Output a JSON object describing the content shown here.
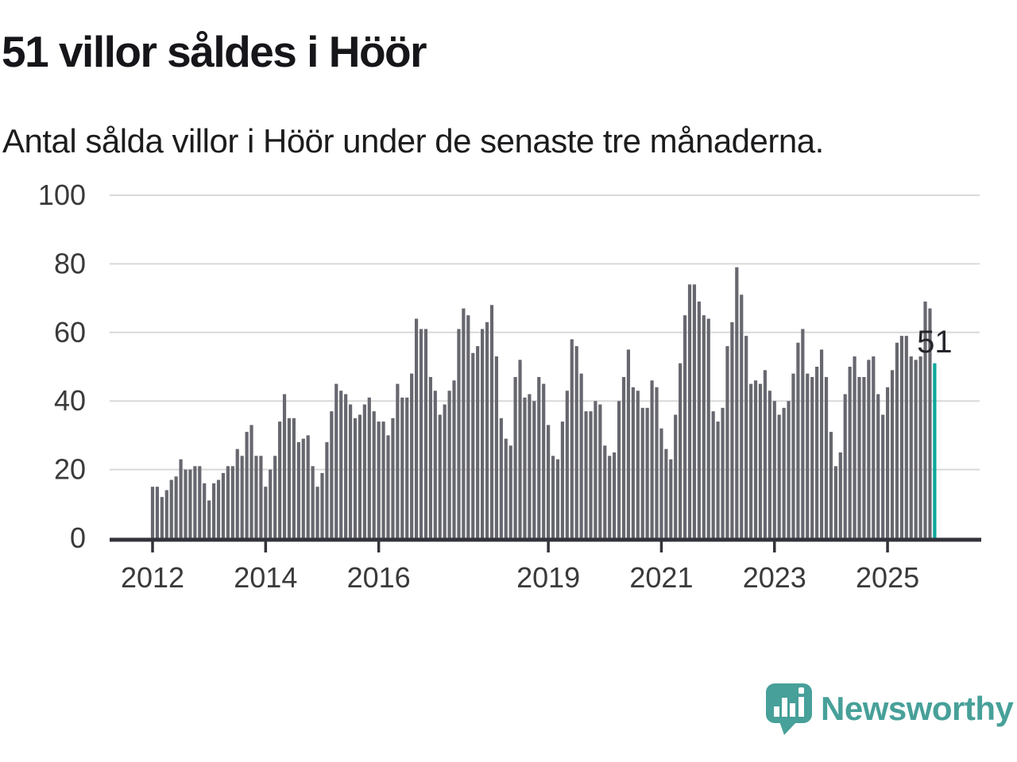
{
  "header": {
    "title": "51 villor såldes i Höör",
    "subtitle": "Antal sålda villor i Höör under de senaste tre månaderna."
  },
  "annotation": {
    "last_value_label": "51"
  },
  "logo": {
    "text": "Newsworthy",
    "icon": "bar-chart-speech-bubble-icon",
    "color": "#47a099"
  },
  "chart_data": {
    "type": "bar",
    "title": "51 villor såldes i Höör",
    "xlabel": "",
    "ylabel": "",
    "x_start_month": "2012-01",
    "x_end_month": "2025-11",
    "ylim": [
      0,
      100
    ],
    "y_ticks": [
      0,
      20,
      40,
      60,
      80,
      100
    ],
    "y_tick_labels": [
      "0",
      "20",
      "40",
      "60",
      "80",
      "100"
    ],
    "x_tick_labels": [
      "2012",
      "2014",
      "2016",
      "2019",
      "2021",
      "2023",
      "2025"
    ],
    "x_tick_month_index": [
      0,
      24,
      48,
      84,
      108,
      132,
      156
    ],
    "grid": true,
    "legend": "none",
    "bar_color": "#67676f",
    "highlight_color": "#0aa79c",
    "grid_color": "#d9d9d9",
    "axis_color": "#33333b",
    "tick_text_color": "#3a3a3a",
    "highlight_last_bar": true,
    "values": [
      15,
      15,
      12,
      14,
      17,
      18,
      23,
      20,
      20,
      21,
      21,
      16,
      11,
      16,
      17,
      19,
      21,
      21,
      26,
      24,
      31,
      33,
      24,
      24,
      15,
      20,
      24,
      34,
      42,
      35,
      35,
      28,
      29,
      30,
      21,
      15,
      19,
      28,
      37,
      45,
      43,
      42,
      39,
      35,
      36,
      39,
      41,
      37,
      34,
      34,
      30,
      35,
      45,
      41,
      41,
      48,
      64,
      61,
      61,
      47,
      43,
      36,
      39,
      43,
      46,
      61,
      67,
      65,
      54,
      56,
      61,
      63,
      68,
      53,
      35,
      29,
      27,
      47,
      52,
      41,
      42,
      40,
      47,
      45,
      33,
      24,
      23,
      34,
      43,
      58,
      56,
      48,
      37,
      37,
      40,
      39,
      27,
      24,
      25,
      40,
      47,
      55,
      44,
      43,
      38,
      38,
      46,
      44,
      32,
      26,
      23,
      36,
      51,
      65,
      74,
      74,
      69,
      65,
      64,
      37,
      34,
      38,
      56,
      63,
      79,
      71,
      59,
      45,
      46,
      45,
      49,
      43,
      40,
      36,
      38,
      40,
      48,
      57,
      61,
      48,
      47,
      50,
      55,
      47,
      31,
      21,
      25,
      42,
      50,
      53,
      47,
      47,
      52,
      53,
      42,
      36,
      44,
      49,
      57,
      59,
      59,
      53,
      52,
      53,
      69,
      67,
      51
    ]
  }
}
